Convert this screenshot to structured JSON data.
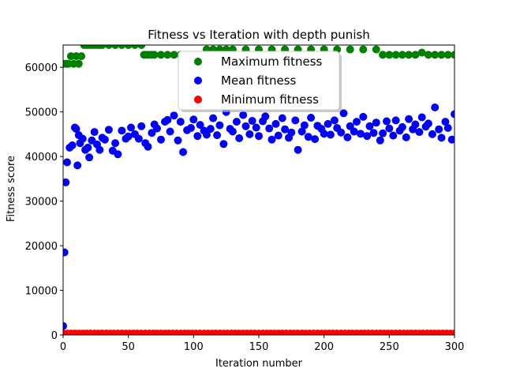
{
  "chart_data": {
    "type": "scatter",
    "title": "Fitness vs Iteration with depth punish",
    "xlabel": "Iteration number",
    "ylabel": "Fitness score",
    "xlim": [
      0,
      300
    ],
    "ylim": [
      0,
      65000
    ],
    "xticks": [
      0,
      50,
      100,
      150,
      200,
      250,
      300
    ],
    "yticks": [
      0,
      10000,
      20000,
      30000,
      40000,
      50000,
      60000
    ],
    "grid": false,
    "legend_position": "top-center",
    "colors": {
      "max": "#008000",
      "mean": "#0000ff",
      "min": "#ff0000"
    },
    "series": [
      {
        "name": "Maximum fitness",
        "key": "max",
        "x": [
          0,
          2,
          4,
          6,
          8,
          10,
          12,
          14,
          16,
          18,
          20,
          22,
          24,
          26,
          28,
          30,
          35,
          40,
          45,
          50,
          55,
          60,
          62,
          64,
          66,
          68,
          70,
          75,
          80,
          85,
          90,
          95,
          100,
          105,
          110,
          115,
          120,
          125,
          130,
          140,
          150,
          160,
          170,
          180,
          190,
          200,
          210,
          220,
          230,
          240,
          245,
          250,
          255,
          260,
          265,
          270,
          275,
          280,
          285,
          290,
          295,
          300
        ],
        "y": [
          60800,
          60800,
          60800,
          62500,
          60800,
          62500,
          60800,
          62500,
          65000,
          65000,
          65000,
          65000,
          65000,
          65000,
          65000,
          65000,
          65000,
          65000,
          65000,
          65000,
          65000,
          65000,
          62800,
          62800,
          62800,
          62800,
          62800,
          62800,
          62800,
          62800,
          62800,
          62800,
          62800,
          62800,
          64000,
          64000,
          64000,
          64000,
          64000,
          64000,
          64000,
          64000,
          64000,
          64000,
          64000,
          64000,
          64000,
          64000,
          64000,
          64000,
          62800,
          62800,
          62800,
          62800,
          62800,
          62800,
          63300,
          62800,
          62800,
          62800,
          62800,
          62800
        ]
      },
      {
        "name": "Mean fitness",
        "key": "mean",
        "x": [
          0,
          1,
          2,
          3,
          5,
          7,
          9,
          10,
          11,
          12,
          13,
          15,
          17,
          19,
          20,
          22,
          24,
          26,
          28,
          30,
          32,
          35,
          38,
          40,
          42,
          45,
          48,
          50,
          52,
          55,
          58,
          60,
          63,
          65,
          68,
          70,
          72,
          75,
          78,
          80,
          82,
          85,
          88,
          90,
          92,
          95,
          98,
          100,
          103,
          105,
          108,
          110,
          113,
          115,
          118,
          120,
          123,
          125,
          128,
          130,
          133,
          135,
          138,
          140,
          143,
          145,
          148,
          150,
          153,
          155,
          158,
          160,
          163,
          165,
          168,
          170,
          173,
          175,
          178,
          180,
          183,
          185,
          188,
          190,
          193,
          195,
          198,
          200,
          203,
          205,
          208,
          210,
          213,
          215,
          218,
          220,
          223,
          225,
          228,
          230,
          233,
          235,
          238,
          240,
          243,
          245,
          248,
          250,
          253,
          255,
          258,
          260,
          263,
          265,
          268,
          270,
          273,
          275,
          278,
          280,
          283,
          285,
          288,
          290,
          293,
          295,
          298,
          300
        ],
        "y": [
          2000,
          18500,
          34200,
          38700,
          42000,
          42500,
          46500,
          46200,
          38000,
          44800,
          43000,
          44000,
          41500,
          42000,
          39800,
          43600,
          45500,
          42700,
          41500,
          44200,
          43800,
          46000,
          41300,
          43000,
          40500,
          45800,
          44000,
          44500,
          46500,
          45000,
          44000,
          46800,
          43000,
          42200,
          45300,
          47200,
          46300,
          43800,
          47800,
          48200,
          45600,
          49200,
          43600,
          47800,
          41000,
          45900,
          46400,
          48300,
          44600,
          47100,
          45800,
          44900,
          46200,
          48600,
          44800,
          47000,
          42800,
          50000,
          46200,
          45600,
          47800,
          44100,
          49300,
          46800,
          45000,
          48000,
          46500,
          44600,
          47900,
          49000,
          46300,
          43800,
          47300,
          44700,
          48600,
          46100,
          44200,
          45400,
          48100,
          41500,
          45600,
          47000,
          44400,
          48700,
          43900,
          46900,
          46200,
          45100,
          47300,
          44900,
          48100,
          46400,
          45400,
          49700,
          44300,
          46800,
          45600,
          47800,
          45100,
          48900,
          44600,
          46800,
          45300,
          47600,
          43600,
          45200,
          47900,
          46300,
          44700,
          48100,
          45800,
          46600,
          44300,
          48400,
          46100,
          47200,
          45500,
          48800,
          46700,
          47400,
          45000,
          51000,
          46100,
          44200,
          47800,
          46400,
          43800,
          49500
        ]
      },
      {
        "name": "Minimum fitness",
        "key": "min",
        "x": [
          0,
          3,
          6,
          9,
          12,
          15,
          18,
          21,
          24,
          27,
          30,
          33,
          36,
          39,
          42,
          45,
          48,
          51,
          54,
          57,
          60,
          63,
          66,
          69,
          72,
          75,
          78,
          81,
          84,
          87,
          90,
          93,
          96,
          99,
          102,
          105,
          108,
          111,
          114,
          117,
          120,
          123,
          126,
          129,
          132,
          135,
          138,
          141,
          144,
          147,
          150,
          153,
          156,
          159,
          162,
          165,
          168,
          171,
          174,
          177,
          180,
          183,
          186,
          189,
          192,
          195,
          198,
          201,
          204,
          207,
          210,
          213,
          216,
          219,
          222,
          225,
          228,
          231,
          234,
          237,
          240,
          243,
          246,
          249,
          252,
          255,
          258,
          261,
          264,
          267,
          270,
          273,
          276,
          279,
          282,
          285,
          288,
          291,
          294,
          297,
          300
        ],
        "y": [
          300,
          300,
          300,
          300,
          300,
          300,
          300,
          300,
          300,
          300,
          300,
          300,
          300,
          300,
          300,
          300,
          300,
          300,
          300,
          300,
          300,
          300,
          300,
          300,
          300,
          300,
          300,
          300,
          300,
          300,
          300,
          300,
          300,
          300,
          300,
          300,
          300,
          300,
          300,
          300,
          300,
          300,
          300,
          300,
          300,
          300,
          300,
          300,
          300,
          300,
          300,
          300,
          300,
          300,
          300,
          300,
          300,
          300,
          300,
          300,
          300,
          300,
          300,
          300,
          300,
          300,
          300,
          300,
          300,
          300,
          300,
          300,
          300,
          300,
          300,
          300,
          300,
          300,
          300,
          300,
          300,
          300,
          300,
          300,
          300,
          300,
          300,
          300,
          300,
          300,
          300,
          300,
          300,
          300,
          300,
          300,
          300,
          300,
          300,
          300,
          300
        ]
      }
    ]
  }
}
